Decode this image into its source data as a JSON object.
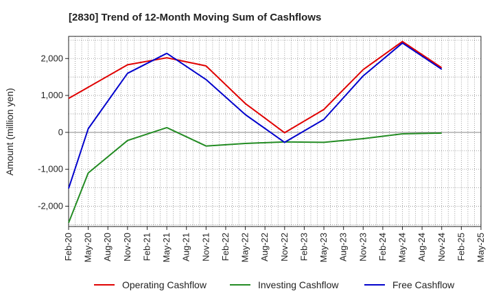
{
  "chart_data": {
    "type": "line",
    "title": "[2830]  Trend of 12-Month Moving Sum of Cashflows",
    "xlabel": "",
    "ylabel": "Amount (million yen)",
    "categories": [
      "Feb-20",
      "May-20",
      "Aug-20",
      "Nov-20",
      "Feb-21",
      "May-21",
      "Aug-21",
      "Nov-21",
      "Feb-22",
      "May-22",
      "Aug-22",
      "Nov-22",
      "Feb-23",
      "May-23",
      "Aug-23",
      "Nov-23",
      "Feb-24",
      "May-24",
      "Aug-24",
      "Nov-24",
      "Feb-25",
      "May-25"
    ],
    "yticks": [
      2000,
      1000,
      0,
      -1000,
      -2000
    ],
    "ytick_labels": [
      "2,000",
      "1,000",
      "0",
      "-1,000",
      "-2,000"
    ],
    "ylim": [
      -2550,
      2600
    ],
    "grid": true,
    "legend_position": "bottom",
    "series": [
      {
        "name": "Operating Cashflow",
        "color": "#e00000",
        "values": [
          920,
          null,
          null,
          1830,
          null,
          2020,
          null,
          1800,
          null,
          780,
          null,
          -10,
          null,
          620,
          null,
          1700,
          null,
          2460,
          null,
          1750,
          null,
          null
        ]
      },
      {
        "name": "Investing Cashflow",
        "color": "#228b22",
        "values": [
          -2450,
          -1100,
          null,
          -220,
          null,
          130,
          null,
          -370,
          null,
          -300,
          null,
          -260,
          null,
          -270,
          null,
          -170,
          null,
          -40,
          null,
          -20,
          null,
          null
        ]
      },
      {
        "name": "Free Cashflow",
        "color": "#0000cc",
        "values": [
          -1520,
          100,
          null,
          1600,
          null,
          2140,
          null,
          1430,
          null,
          480,
          null,
          -270,
          null,
          350,
          null,
          1530,
          null,
          2420,
          null,
          1710,
          null,
          null
        ]
      }
    ]
  }
}
